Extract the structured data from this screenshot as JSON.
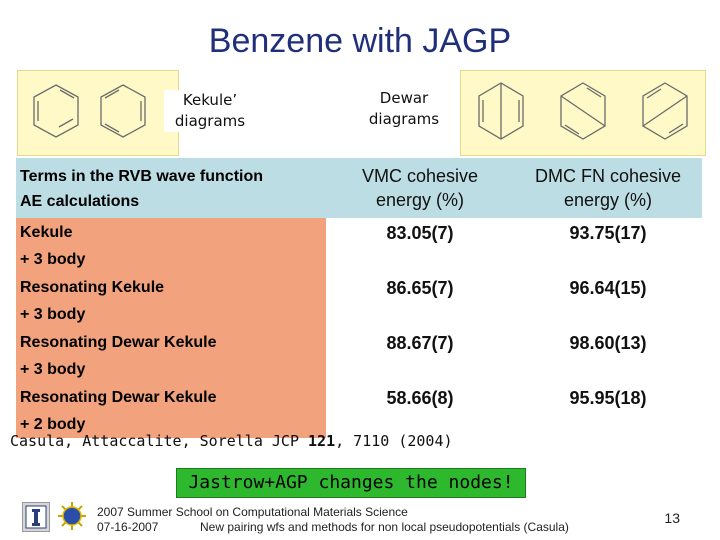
{
  "title": "Benzene with JAGP",
  "kekule_label_line1": "Kekule’",
  "kekule_label_line2": "diagrams",
  "dewar_label_line1": "Dewar",
  "dewar_label_line2": "diagrams",
  "table": {
    "header": {
      "col0_line1": "Terms in the RVB wave function",
      "col0_line2": "AE calculations",
      "vmc_line1": "VMC cohesive",
      "vmc_line2": "energy (%)",
      "dmc_line1": "DMC FN cohesive",
      "dmc_line2": "energy (%)"
    },
    "rows": [
      {
        "line1": "Kekule",
        "line2": "+ 3 body",
        "vmc": "83.05(7)",
        "dmc": "93.75(17)"
      },
      {
        "line1": "Resonating Kekule",
        "line2": "+ 3 body",
        "vmc": "86.65(7)",
        "dmc": "96.64(15)"
      },
      {
        "line1": "Resonating Dewar Kekule",
        "line2": "+ 3 body",
        "vmc": "88.67(7)",
        "dmc": "98.60(13)"
      },
      {
        "line1": "Resonating  Dewar Kekule",
        "line2": "+ 2 body",
        "vmc": "58.66(8)",
        "dmc": "95.95(18)"
      }
    ]
  },
  "citation": {
    "prefix": "Casula, Attaccalite, Sorella JCP ",
    "volume": "121",
    "suffix": ", 7110 (2004)"
  },
  "banner": "Jastrow+AGP changes the nodes!",
  "footer": {
    "line1": "2007 Summer School on Computational Materials Science",
    "date": "07-16-2007",
    "line2": "New pairing wfs and methods for non local pseudopotentials (Casula)"
  },
  "slide_number": "13"
}
